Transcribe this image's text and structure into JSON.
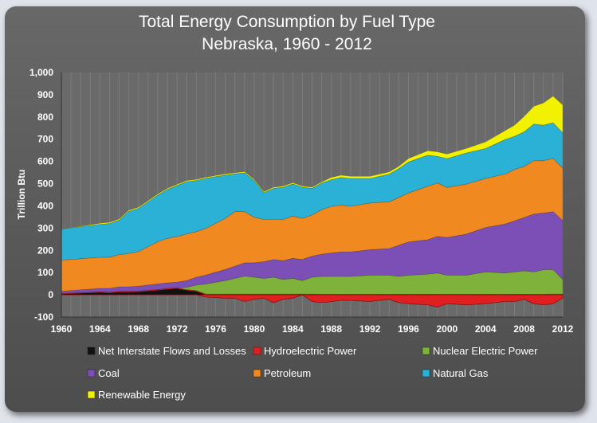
{
  "chart_data": {
    "type": "area",
    "stacking": "stacked, positive and negative",
    "title": "Total Energy Consumption by Fuel Type",
    "subtitle": "Nebraska, 1960 - 2012",
    "xlabel": "",
    "ylabel": "Trillion Btu",
    "xlim": [
      1960,
      2012
    ],
    "ylim": [
      -100,
      1000
    ],
    "x_ticks": [
      "1960",
      "1964",
      "1968",
      "1972",
      "1976",
      "1980",
      "1984",
      "1988",
      "1992",
      "1996",
      "2000",
      "2004",
      "2008",
      "2012"
    ],
    "y_ticks": [
      "-100",
      "0",
      "100",
      "200",
      "300",
      "400",
      "500",
      "600",
      "700",
      "800",
      "900",
      "1,000"
    ],
    "grid": "vertical",
    "legend_position": "bottom",
    "key_years": [
      1960,
      1964,
      1965,
      1966,
      1967,
      1968,
      1970,
      1971,
      1972,
      1973,
      1974,
      1975,
      1977,
      1978,
      1979,
      1980,
      1981,
      1982,
      1983,
      1984,
      1985,
      1986,
      1987,
      1988,
      1989,
      1990,
      1992,
      1994,
      1995,
      1996,
      1998,
      1999,
      2000,
      2002,
      2004,
      2006,
      2007,
      2008,
      2009,
      2010,
      2011,
      2012
    ],
    "series": [
      {
        "name": "Net Interstate Flows and Losses",
        "color": "#111111",
        "values": [
          3,
          10,
          8,
          12,
          12,
          13,
          20,
          25,
          28,
          20,
          15,
          0,
          0,
          0,
          0,
          0,
          0,
          0,
          0,
          0,
          0,
          0,
          0,
          0,
          0,
          0,
          0,
          0,
          0,
          0,
          0,
          0,
          0,
          0,
          0,
          0,
          0,
          0,
          0,
          0,
          0,
          0
        ]
      },
      {
        "name": "Hydroelectric Power",
        "color": "#e02020",
        "values": [
          3,
          4,
          4,
          4,
          4,
          4,
          4,
          4,
          4,
          4,
          4,
          4,
          4,
          4,
          4,
          4,
          4,
          4,
          4,
          4,
          4,
          4,
          3,
          3,
          3,
          3,
          3,
          3,
          3,
          3,
          3,
          3,
          3,
          3,
          3,
          3,
          3,
          3,
          3,
          3,
          4,
          4
        ]
      },
      {
        "name": "Nuclear Electric Power",
        "color": "#7fb23a",
        "values": [
          0,
          0,
          0,
          0,
          0,
          0,
          0,
          0,
          0,
          10,
          25,
          45,
          60,
          70,
          80,
          75,
          70,
          75,
          65,
          70,
          60,
          75,
          80,
          80,
          80,
          80,
          85,
          85,
          80,
          85,
          90,
          95,
          85,
          85,
          100,
          95,
          100,
          105,
          100,
          110,
          110,
          65
        ]
      },
      {
        "name": "Coal",
        "color": "#7b4fb5",
        "values": [
          10,
          15,
          17,
          20,
          20,
          22,
          25,
          25,
          25,
          30,
          35,
          40,
          50,
          55,
          60,
          65,
          75,
          80,
          85,
          90,
          95,
          95,
          100,
          105,
          110,
          110,
          115,
          120,
          140,
          150,
          155,
          165,
          170,
          185,
          200,
          220,
          230,
          240,
          260,
          255,
          260,
          265
        ]
      },
      {
        "name": "Petroleum",
        "color": "#f08a20",
        "values": [
          140,
          140,
          140,
          145,
          150,
          155,
          190,
          200,
          205,
          210,
          205,
          210,
          230,
          245,
          230,
          205,
          190,
          180,
          185,
          190,
          185,
          185,
          200,
          210,
          210,
          205,
          210,
          210,
          215,
          220,
          240,
          240,
          225,
          225,
          220,
          225,
          230,
          230,
          240,
          235,
          240,
          235
        ]
      },
      {
        "name": "Natural Gas",
        "color": "#2bb0d6",
        "values": [
          140,
          148,
          152,
          155,
          190,
          195,
          210,
          220,
          230,
          235,
          230,
          225,
          195,
          170,
          175,
          165,
          120,
          140,
          145,
          145,
          140,
          120,
          120,
          120,
          125,
          125,
          110,
          125,
          130,
          140,
          140,
          120,
          130,
          140,
          135,
          155,
          150,
          155,
          165,
          160,
          160,
          160
        ]
      },
      {
        "name": "Renewable Energy",
        "color": "#f2f200",
        "values": [
          0,
          5,
          5,
          5,
          5,
          5,
          5,
          5,
          5,
          5,
          5,
          5,
          5,
          5,
          5,
          5,
          5,
          5,
          5,
          5,
          5,
          5,
          5,
          10,
          10,
          10,
          10,
          10,
          10,
          15,
          20,
          20,
          20,
          20,
          30,
          40,
          50,
          70,
          80,
          100,
          120,
          125
        ]
      }
    ],
    "negative_flows": {
      "name": "Net Interstate Flows and Losses",
      "values": [
        0,
        0,
        0,
        0,
        0,
        0,
        0,
        0,
        0,
        0,
        0,
        -10,
        -15,
        -15,
        -30,
        -20,
        -15,
        -35,
        -20,
        -15,
        0,
        -30,
        -35,
        -30,
        -25,
        -25,
        -30,
        -20,
        -35,
        -40,
        -45,
        -55,
        -40,
        -45,
        -40,
        -30,
        -30,
        -20,
        -40,
        -45,
        -40,
        -15
      ]
    }
  }
}
